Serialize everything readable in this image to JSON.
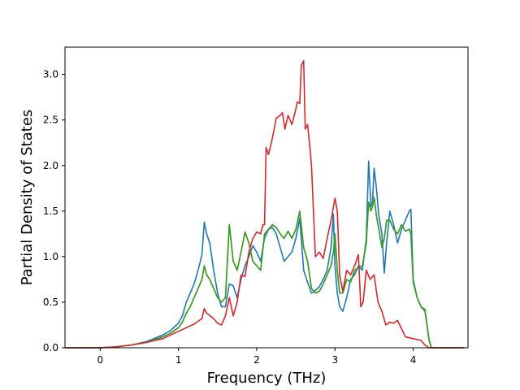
{
  "chart_data": {
    "type": "line",
    "xlabel": "Frequency (THz)",
    "ylabel": "Partial Density of States",
    "xlim": [
      -0.45,
      4.7
    ],
    "ylim": [
      0.0,
      3.3
    ],
    "xticks": [
      0,
      1,
      2,
      3,
      4
    ],
    "yticks": [
      0.0,
      0.5,
      1.0,
      1.5,
      2.0,
      2.5,
      3.0
    ],
    "grid": false,
    "series": [
      {
        "color": "#1f77b4",
        "x": [
          -0.45,
          0.0,
          0.2,
          0.4,
          0.6,
          0.8,
          0.9,
          1.0,
          1.05,
          1.1,
          1.15,
          1.2,
          1.25,
          1.3,
          1.33,
          1.36,
          1.4,
          1.45,
          1.5,
          1.55,
          1.6,
          1.65,
          1.7,
          1.75,
          1.8,
          1.85,
          1.9,
          1.95,
          2.0,
          2.05,
          2.1,
          2.15,
          2.2,
          2.25,
          2.3,
          2.35,
          2.4,
          2.45,
          2.5,
          2.55,
          2.6,
          2.65,
          2.7,
          2.75,
          2.8,
          2.85,
          2.9,
          2.95,
          2.98,
          3.0,
          3.03,
          3.06,
          3.1,
          3.15,
          3.2,
          3.25,
          3.3,
          3.35,
          3.4,
          3.43,
          3.46,
          3.48,
          3.5,
          3.53,
          3.56,
          3.6,
          3.63,
          3.66,
          3.7,
          3.75,
          3.8,
          3.85,
          3.9,
          3.95,
          3.97,
          4.0,
          4.05,
          4.1,
          4.15,
          4.2,
          4.23,
          4.3,
          4.65
        ],
        "y": [
          0.0,
          0.0,
          0.01,
          0.03,
          0.07,
          0.14,
          0.19,
          0.27,
          0.35,
          0.5,
          0.6,
          0.7,
          0.85,
          1.02,
          1.38,
          1.25,
          1.15,
          0.85,
          0.6,
          0.45,
          0.45,
          0.7,
          0.68,
          0.55,
          0.75,
          0.9,
          1.0,
          1.12,
          1.05,
          0.95,
          1.2,
          1.3,
          1.32,
          1.25,
          1.1,
          0.95,
          1.0,
          1.05,
          1.2,
          1.42,
          0.85,
          0.72,
          0.6,
          0.63,
          0.67,
          0.75,
          0.85,
          1.1,
          1.47,
          0.9,
          0.6,
          0.45,
          0.4,
          0.55,
          0.75,
          0.8,
          0.9,
          0.85,
          1.2,
          2.05,
          1.55,
          1.6,
          1.97,
          1.75,
          1.45,
          1.25,
          0.82,
          1.15,
          1.5,
          1.35,
          1.15,
          1.3,
          1.4,
          1.5,
          1.52,
          0.75,
          0.55,
          0.45,
          0.4,
          0.1,
          0.0,
          0.0,
          0.0
        ]
      },
      {
        "color": "#ff7f0e",
        "x": [
          -0.45,
          0.0,
          0.2,
          0.4,
          0.6,
          0.8,
          0.9,
          1.0,
          1.05,
          1.1,
          1.15,
          1.2,
          1.25,
          1.3,
          1.33,
          1.36,
          1.4,
          1.45,
          1.5,
          1.55,
          1.6,
          1.65,
          1.7,
          1.75,
          1.8,
          1.85,
          1.9,
          1.95,
          2.0,
          2.05,
          2.1,
          2.15,
          2.2,
          2.25,
          2.3,
          2.35,
          2.4,
          2.45,
          2.5,
          2.55,
          2.6,
          2.65,
          2.7,
          2.75,
          2.8,
          2.85,
          2.9,
          2.95,
          2.98,
          3.0,
          3.03,
          3.06,
          3.1,
          3.15,
          3.2,
          3.25,
          3.3,
          3.35,
          3.4,
          3.43,
          3.46,
          3.48,
          3.5,
          3.53,
          3.56,
          3.6,
          3.63,
          3.66,
          3.7,
          3.75,
          3.8,
          3.85,
          3.9,
          3.95,
          3.97,
          4.0,
          4.05,
          4.1,
          4.15,
          4.2,
          4.23,
          4.3,
          4.65
        ],
        "y": [
          0.0,
          0.0,
          0.01,
          0.03,
          0.06,
          0.12,
          0.16,
          0.22,
          0.28,
          0.38,
          0.45,
          0.55,
          0.65,
          0.75,
          0.9,
          0.8,
          0.75,
          0.65,
          0.55,
          0.5,
          0.55,
          1.35,
          0.95,
          0.85,
          1.05,
          1.27,
          1.15,
          0.95,
          0.9,
          0.85,
          1.25,
          1.3,
          1.35,
          1.32,
          1.25,
          1.2,
          1.28,
          1.2,
          1.3,
          1.5,
          1.1,
          0.95,
          0.65,
          0.6,
          0.62,
          0.7,
          0.8,
          0.9,
          1.05,
          1.25,
          0.85,
          0.6,
          0.6,
          0.75,
          0.72,
          0.85,
          0.88,
          0.9,
          1.15,
          1.6,
          1.5,
          1.55,
          1.65,
          1.45,
          1.3,
          1.1,
          1.2,
          1.4,
          1.4,
          1.3,
          1.25,
          1.35,
          1.28,
          1.3,
          1.25,
          0.72,
          0.55,
          0.45,
          0.42,
          0.1,
          0.0,
          0.0,
          0.0
        ]
      },
      {
        "color": "#2ca02c",
        "x": [
          -0.45,
          0.0,
          0.2,
          0.4,
          0.6,
          0.8,
          0.9,
          1.0,
          1.05,
          1.1,
          1.15,
          1.2,
          1.25,
          1.3,
          1.33,
          1.36,
          1.4,
          1.45,
          1.5,
          1.55,
          1.6,
          1.65,
          1.7,
          1.75,
          1.8,
          1.85,
          1.9,
          1.95,
          2.0,
          2.05,
          2.1,
          2.15,
          2.2,
          2.25,
          2.3,
          2.35,
          2.4,
          2.45,
          2.5,
          2.55,
          2.6,
          2.65,
          2.7,
          2.75,
          2.8,
          2.85,
          2.9,
          2.95,
          2.98,
          3.0,
          3.03,
          3.06,
          3.1,
          3.15,
          3.2,
          3.25,
          3.3,
          3.35,
          3.4,
          3.43,
          3.46,
          3.48,
          3.5,
          3.53,
          3.56,
          3.6,
          3.63,
          3.66,
          3.7,
          3.75,
          3.8,
          3.85,
          3.9,
          3.95,
          3.97,
          4.0,
          4.05,
          4.1,
          4.15,
          4.2,
          4.23,
          4.3,
          4.65
        ],
        "y": [
          0.0,
          0.0,
          0.01,
          0.03,
          0.06,
          0.12,
          0.16,
          0.22,
          0.28,
          0.38,
          0.45,
          0.55,
          0.65,
          0.75,
          0.9,
          0.8,
          0.75,
          0.65,
          0.55,
          0.5,
          0.55,
          1.35,
          0.95,
          0.85,
          1.05,
          1.27,
          1.15,
          0.95,
          0.9,
          0.85,
          1.25,
          1.3,
          1.35,
          1.32,
          1.25,
          1.2,
          1.28,
          1.2,
          1.3,
          1.5,
          1.1,
          0.95,
          0.65,
          0.6,
          0.62,
          0.7,
          0.8,
          0.9,
          1.05,
          1.25,
          0.85,
          0.6,
          0.6,
          0.75,
          0.72,
          0.85,
          0.88,
          0.9,
          1.15,
          1.6,
          1.5,
          1.55,
          1.65,
          1.45,
          1.3,
          1.1,
          1.2,
          1.4,
          1.4,
          1.3,
          1.25,
          1.35,
          1.28,
          1.3,
          1.25,
          0.72,
          0.55,
          0.45,
          0.42,
          0.1,
          0.0,
          0.0,
          0.0
        ]
      },
      {
        "color": "#d62728",
        "x": [
          -0.45,
          0.0,
          0.2,
          0.4,
          0.6,
          0.8,
          1.0,
          1.1,
          1.2,
          1.3,
          1.33,
          1.36,
          1.45,
          1.5,
          1.55,
          1.6,
          1.65,
          1.7,
          1.75,
          1.8,
          1.85,
          1.9,
          1.95,
          2.0,
          2.05,
          2.08,
          2.1,
          2.12,
          2.15,
          2.2,
          2.25,
          2.3,
          2.33,
          2.36,
          2.4,
          2.45,
          2.5,
          2.52,
          2.55,
          2.57,
          2.6,
          2.62,
          2.65,
          2.68,
          2.7,
          2.75,
          2.8,
          2.85,
          2.9,
          2.95,
          3.0,
          3.03,
          3.06,
          3.1,
          3.15,
          3.2,
          3.25,
          3.3,
          3.33,
          3.36,
          3.4,
          3.45,
          3.5,
          3.55,
          3.6,
          3.65,
          3.7,
          3.75,
          3.8,
          3.9,
          4.0,
          4.1,
          4.15,
          4.2,
          4.23,
          4.3,
          4.65
        ],
        "y": [
          0.0,
          0.0,
          0.01,
          0.03,
          0.06,
          0.1,
          0.18,
          0.22,
          0.26,
          0.32,
          0.43,
          0.38,
          0.32,
          0.27,
          0.25,
          0.35,
          0.55,
          0.35,
          0.5,
          0.8,
          0.78,
          1.05,
          1.2,
          1.27,
          1.25,
          1.35,
          1.35,
          2.2,
          2.12,
          2.3,
          2.52,
          2.55,
          2.58,
          2.4,
          2.55,
          2.45,
          2.62,
          2.7,
          2.68,
          3.1,
          3.15,
          2.4,
          2.45,
          2.2,
          2.0,
          1.0,
          1.05,
          0.98,
          1.2,
          1.4,
          1.64,
          1.5,
          0.8,
          0.62,
          0.85,
          0.8,
          0.9,
          1.02,
          0.45,
          0.5,
          0.85,
          0.75,
          0.8,
          0.5,
          0.4,
          0.25,
          0.28,
          0.27,
          0.3,
          0.12,
          0.1,
          0.08,
          0.03,
          0.0,
          0.0,
          0.0,
          0.0
        ]
      }
    ]
  }
}
